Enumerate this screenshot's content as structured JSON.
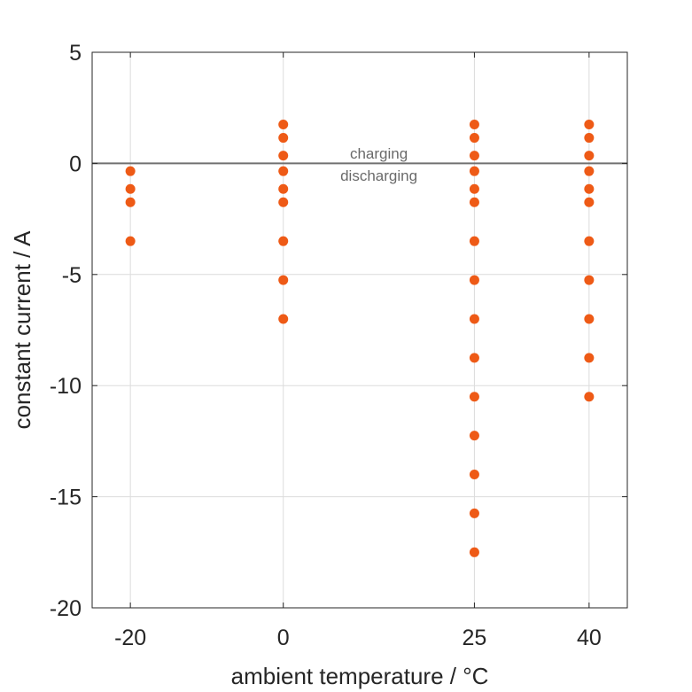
{
  "chart_data": {
    "type": "scatter",
    "xlabel": "ambient temperature / °C",
    "ylabel": "constant current / A",
    "xlim": [
      -25,
      45
    ],
    "ylim": [
      -20,
      5
    ],
    "xticks": [
      -20,
      0,
      25,
      40
    ],
    "yticks": [
      5,
      0,
      -5,
      -10,
      -15,
      -20
    ],
    "grid": true,
    "point_color": "#ee5a16",
    "reference_line": {
      "y": 0,
      "color": "#707070"
    },
    "annotations": [
      {
        "text": "charging",
        "x": 12.5,
        "y": 0.45
      },
      {
        "text": "discharging",
        "x": 12.5,
        "y": -0.55
      }
    ],
    "series": [
      {
        "points": [
          {
            "x": -20,
            "y": -0.35
          },
          {
            "x": -20,
            "y": -1.15
          },
          {
            "x": -20,
            "y": -1.75
          },
          {
            "x": -20,
            "y": -3.5
          },
          {
            "x": 0,
            "y": 1.75
          },
          {
            "x": 0,
            "y": 1.15
          },
          {
            "x": 0,
            "y": 0.35
          },
          {
            "x": 0,
            "y": -0.35
          },
          {
            "x": 0,
            "y": -1.15
          },
          {
            "x": 0,
            "y": -1.75
          },
          {
            "x": 0,
            "y": -3.5
          },
          {
            "x": 0,
            "y": -5.25
          },
          {
            "x": 0,
            "y": -7.0
          },
          {
            "x": 25,
            "y": 1.75
          },
          {
            "x": 25,
            "y": 1.15
          },
          {
            "x": 25,
            "y": 0.35
          },
          {
            "x": 25,
            "y": -0.35
          },
          {
            "x": 25,
            "y": -1.15
          },
          {
            "x": 25,
            "y": -1.75
          },
          {
            "x": 25,
            "y": -3.5
          },
          {
            "x": 25,
            "y": -5.25
          },
          {
            "x": 25,
            "y": -7.0
          },
          {
            "x": 25,
            "y": -8.75
          },
          {
            "x": 25,
            "y": -10.5
          },
          {
            "x": 25,
            "y": -12.25
          },
          {
            "x": 25,
            "y": -14.0
          },
          {
            "x": 25,
            "y": -15.75
          },
          {
            "x": 25,
            "y": -17.5
          },
          {
            "x": 40,
            "y": 1.75
          },
          {
            "x": 40,
            "y": 1.15
          },
          {
            "x": 40,
            "y": 0.35
          },
          {
            "x": 40,
            "y": -0.35
          },
          {
            "x": 40,
            "y": -1.15
          },
          {
            "x": 40,
            "y": -1.75
          },
          {
            "x": 40,
            "y": -3.5
          },
          {
            "x": 40,
            "y": -5.25
          },
          {
            "x": 40,
            "y": -7.0
          },
          {
            "x": 40,
            "y": -8.75
          },
          {
            "x": 40,
            "y": -10.5
          }
        ]
      }
    ]
  }
}
